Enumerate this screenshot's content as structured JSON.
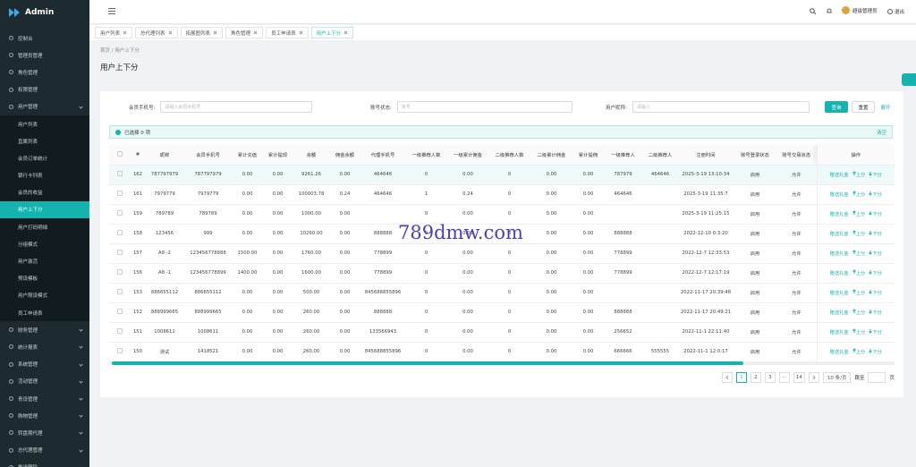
{
  "sidebar": {
    "brand": "Admin",
    "menu": [
      "控制台",
      "管理员管理",
      "角色管理",
      "权限管理",
      "用户管理"
    ],
    "submenu": [
      "用户列表",
      "直属列表",
      "会员订单统计",
      "银行卡列表",
      "会员的收益",
      "用户上下分",
      "用户打码明细",
      "分组模式",
      "用户激活",
      "预设模板",
      "用户限设模式",
      "员工申请表"
    ],
    "menu_after": [
      "财务管理",
      "统计报表",
      "系统管理",
      "活动管理",
      "青设管理",
      "购物管理",
      "转盘期代理",
      "总代理管理",
      "推送删除"
    ]
  },
  "header": {
    "user": "超级管理员",
    "logout": "退出"
  },
  "tabs": [
    "用户列表",
    "总代理列表",
    "拓展图列表",
    "角色管理",
    "员工申请表",
    "用户上下分"
  ],
  "breadcrumb": [
    "首页",
    "用户上下分"
  ],
  "page_title": "用户上下分",
  "filters": [
    {
      "label": "会员手机号:",
      "placeholder": "请输入会员手机号"
    },
    {
      "label": "账号状态:",
      "placeholder": "账号"
    },
    {
      "label": "用户昵称:",
      "placeholder": "请输入"
    }
  ],
  "buttons": {
    "search": "查询",
    "reset": "重置",
    "expand": "展开"
  },
  "selection": {
    "text": "已选择 0 项",
    "clear": "清空"
  },
  "table": {
    "columns": [
      "#",
      "昵称",
      "会员手机号",
      "累计充值",
      "累计提现",
      "余额",
      "佣金余额",
      "代理手机号",
      "一级推荐人数",
      "一级累计佣金",
      "二级推荐人数",
      "二级累计佣金",
      "累计提佣",
      "一级推荐人",
      "二级推荐人",
      "注册时间",
      "账号登录状态",
      "账号交易状态",
      "操作"
    ],
    "rows": [
      [
        "162",
        "787797979",
        "787797979",
        "0.00",
        "0.00",
        "9261.26",
        "0.00",
        "464646",
        "0",
        "0.00",
        "0",
        "0.00",
        "0.00",
        "787979",
        "464646",
        "2025-3-19 13:10:34",
        "启用",
        "允许"
      ],
      [
        "161",
        "7979779",
        "7979779",
        "0.00",
        "0.00",
        "100003.78",
        "0.24",
        "464646",
        "1",
        "0.24",
        "0",
        "0.00",
        "0.00",
        "464646",
        null,
        "2025-3-19 11:35:7",
        "启用",
        "允许"
      ],
      [
        "159",
        "789789",
        "789789",
        "0.00",
        "0.00",
        "1000.00",
        "0.00",
        null,
        "0",
        "0.00",
        "0",
        "0.00",
        "0.00",
        null,
        null,
        "2025-3-19 11:25:15",
        "启用",
        "允许"
      ],
      [
        "158",
        "123456",
        "999",
        "0.00",
        "0.00",
        "10260.00",
        "0.00",
        "888888",
        "0",
        "0.00",
        "0",
        "0.00",
        "0.00",
        "888888",
        null,
        "2022-12-10 0:3:20",
        "启用",
        "允许"
      ],
      [
        "157",
        "A8 -2",
        "123456778888",
        "1500.00",
        "0.00",
        "1760.00",
        "0.00",
        "778899",
        "0",
        "0.00",
        "0",
        "0.00",
        "0.00",
        "778899",
        null,
        "2022-12-7 12:33:53",
        "启用",
        "允许"
      ],
      [
        "156",
        "A8 -1",
        "123456778899",
        "1400.00",
        "0.00",
        "1600.00",
        "0.00",
        "778899",
        "0",
        "0.00",
        "0",
        "0.00",
        "0.00",
        "778899",
        null,
        "2022-12-7 12:17:19",
        "启用",
        "允许"
      ],
      [
        "153",
        "886655112",
        "886655112",
        "0.00",
        "0.00",
        "500.00",
        "0.00",
        "845688855896",
        "0",
        "0.00",
        "0",
        "0.00",
        "0.00",
        null,
        null,
        "2022-11-17 20:39:48",
        "启用",
        "允许"
      ],
      [
        "152",
        "888999665",
        "888999665",
        "0.00",
        "0.00",
        "260.00",
        "0.00",
        "888888",
        "0",
        "0.00",
        "0",
        "0.00",
        "0.00",
        "888888",
        null,
        "2022-11-17 20:49:21",
        "启用",
        "允许"
      ],
      [
        "151",
        "1008611",
        "1008611",
        "0.00",
        "0.00",
        "260.00",
        "0.00",
        "133566943",
        "0",
        "0.00",
        "0",
        "0.00",
        "0.00",
        "256652",
        null,
        "2022-11-1 22:11:40",
        "启用",
        "允许"
      ],
      [
        "150",
        "测试",
        "1418521",
        "0.00",
        "0.00",
        "260.00",
        "0.00",
        "845688855896",
        "0",
        "0.00",
        "0",
        "0.00",
        "0.00",
        "666666",
        "555555",
        "2022-11-1 12:0:17",
        "启用",
        "允许"
      ]
    ],
    "actions": [
      "赠送礼金",
      "上分",
      "下分"
    ]
  },
  "pagination": {
    "pages": [
      1,
      2,
      3,
      "···",
      14
    ],
    "page_size": "10 条/页",
    "jump": "跳至",
    "unit": "页"
  },
  "watermark": "789dmw.com"
}
